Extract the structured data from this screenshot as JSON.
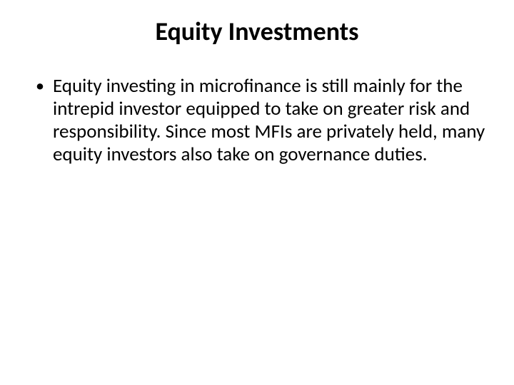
{
  "slide": {
    "title": "Equity Investments",
    "bullets": [
      "Equity investing in microfinance is still mainly for the intrepid investor equipped to take on greater risk and responsibility. Since most MFIs are privately held, many equity investors also take on governance duties."
    ],
    "background_color": "#ffffff",
    "title_color": "#000000",
    "title_fontsize": 36,
    "title_fontweight": 700,
    "body_color": "#000000",
    "body_fontsize": 27,
    "font_family": "Calibri"
  }
}
